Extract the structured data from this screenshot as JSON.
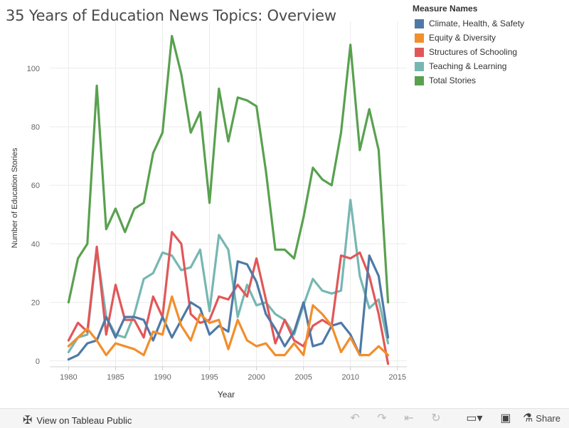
{
  "title": "35 Years of Education News Topics: Overview",
  "legend": {
    "title": "Measure Names",
    "items": [
      {
        "label": "Climate, Health, & Safety",
        "color": "#4e79a7"
      },
      {
        "label": "Equity & Diversity",
        "color": "#f28e2b"
      },
      {
        "label": "Structures of Schooling",
        "color": "#e15759"
      },
      {
        "label": "Teaching & Learning",
        "color": "#76b7b2"
      },
      {
        "label": "Total Stories",
        "color": "#59a14f"
      }
    ]
  },
  "footer": {
    "view_label": "View on Tableau Public",
    "share_label": "Share",
    "icons": [
      "tableau-logo-icon",
      "undo-icon",
      "redo-icon",
      "revert-icon",
      "refresh-icon",
      "download-icon",
      "fullscreen-icon",
      "share-icon"
    ]
  },
  "chart_data": {
    "type": "line",
    "title": "35 Years of Education News Topics: Overview",
    "xlabel": "Year",
    "ylabel": "Number of Education Stories",
    "xlim": [
      1978,
      2016
    ],
    "ylim": [
      -2,
      116
    ],
    "x_ticks": [
      1980,
      1985,
      1990,
      1995,
      2000,
      2005,
      2010,
      2015
    ],
    "y_ticks": [
      0,
      20,
      40,
      60,
      80,
      100
    ],
    "grid": true,
    "legend_position": "top-right",
    "x": [
      1980,
      1981,
      1982,
      1983,
      1984,
      1985,
      1986,
      1987,
      1988,
      1989,
      1990,
      1991,
      1992,
      1993,
      1994,
      1995,
      1996,
      1997,
      1998,
      1999,
      2000,
      2001,
      2002,
      2003,
      2004,
      2005,
      2006,
      2007,
      2008,
      2009,
      2010,
      2011,
      2012,
      2013,
      2014
    ],
    "series": [
      {
        "name": "Total Stories",
        "color": "#59a14f",
        "values": [
          20,
          35,
          40,
          94,
          45,
          52,
          44,
          52,
          54,
          71,
          78,
          111,
          98,
          78,
          85,
          54,
          93,
          75,
          90,
          89,
          87,
          65,
          38,
          38,
          35,
          49,
          66,
          62,
          60,
          78,
          108,
          72,
          86,
          72,
          20
        ]
      },
      {
        "name": "Teaching & Learning",
        "color": "#76b7b2",
        "values": [
          3,
          8,
          9,
          38,
          15,
          9,
          8,
          16,
          28,
          30,
          37,
          36,
          31,
          32,
          38,
          17,
          43,
          38,
          15,
          26,
          19,
          20,
          16,
          14,
          9,
          19,
          28,
          24,
          23,
          24,
          55,
          29,
          18,
          21,
          6
        ]
      },
      {
        "name": "Structures of Schooling",
        "color": "#e15759",
        "values": [
          7,
          13,
          10,
          39,
          9,
          26,
          14,
          14,
          8,
          22,
          15,
          44,
          40,
          16,
          13,
          14,
          22,
          21,
          26,
          22,
          35,
          21,
          6,
          14,
          7,
          5,
          12,
          14,
          12,
          36,
          35,
          37,
          29,
          16,
          -1
        ]
      },
      {
        "name": "Climate, Health, & Safety",
        "color": "#4e79a7",
        "values": [
          0.5,
          2,
          6,
          7,
          15,
          8,
          15,
          15,
          14,
          7,
          15,
          8,
          14,
          20,
          18,
          9,
          12,
          10,
          34,
          33,
          27,
          16,
          11,
          5,
          10,
          20,
          5,
          6,
          12,
          13,
          9,
          2,
          36,
          29,
          8
        ]
      },
      {
        "name": "Equity & Diversity",
        "color": "#f28e2b",
        "values": [
          5,
          8,
          11,
          7,
          2,
          6,
          5,
          4,
          2,
          10,
          9,
          22,
          12,
          7,
          16,
          13,
          14,
          4,
          14,
          7,
          5,
          6,
          2,
          2,
          6,
          2,
          19,
          16,
          12,
          3,
          8,
          2,
          2,
          5,
          2
        ]
      }
    ]
  }
}
